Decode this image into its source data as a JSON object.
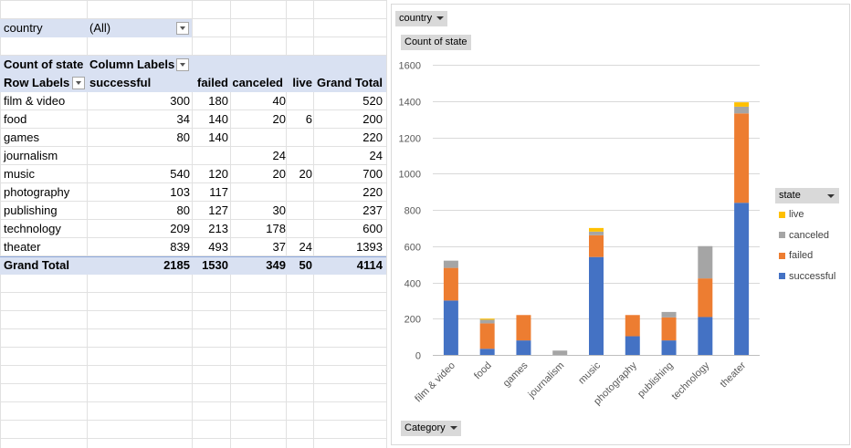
{
  "filter": {
    "field": "country",
    "value": "(All)"
  },
  "pivot": {
    "values_label": "Count of state",
    "column_labels_label": "Column Labels",
    "row_labels_label": "Row Labels",
    "columns": [
      "successful",
      "failed",
      "canceled",
      "live",
      "Grand Total"
    ],
    "rows": [
      {
        "label": "film & video",
        "values": [
          "300",
          "180",
          "40",
          "",
          "520"
        ]
      },
      {
        "label": "food",
        "values": [
          "34",
          "140",
          "20",
          "6",
          "200"
        ]
      },
      {
        "label": "games",
        "values": [
          "80",
          "140",
          "",
          "",
          "220"
        ]
      },
      {
        "label": "journalism",
        "values": [
          "",
          "",
          "24",
          "",
          "24"
        ]
      },
      {
        "label": "music",
        "values": [
          "540",
          "120",
          "20",
          "20",
          "700"
        ]
      },
      {
        "label": "photography",
        "values": [
          "103",
          "117",
          "",
          "",
          "220"
        ]
      },
      {
        "label": "publishing",
        "values": [
          "80",
          "127",
          "30",
          "",
          "237"
        ]
      },
      {
        "label": "technology",
        "values": [
          "209",
          "213",
          "178",
          "",
          "600"
        ]
      },
      {
        "label": "theater",
        "values": [
          "839",
          "493",
          "37",
          "24",
          "1393"
        ]
      }
    ],
    "total": {
      "label": "Grand Total",
      "values": [
        "2185",
        "1530",
        "349",
        "50",
        "4114"
      ]
    }
  },
  "chart": {
    "filter_chip": "country",
    "values_chip": "Count of state",
    "axis_chip": "Category",
    "legend_title": "state"
  },
  "colors": {
    "successful": "#4472c4",
    "failed": "#ed7d31",
    "canceled": "#a5a5a5",
    "live": "#ffc000",
    "header_band": "#d9e1f2",
    "gridline": "#d9d9d9"
  },
  "chart_data": {
    "type": "bar",
    "stacked": true,
    "categories": [
      "film & video",
      "food",
      "games",
      "journalism",
      "music",
      "photography",
      "publishing",
      "technology",
      "theater"
    ],
    "series": [
      {
        "name": "successful",
        "values": [
          300,
          34,
          80,
          0,
          540,
          103,
          80,
          209,
          839
        ]
      },
      {
        "name": "failed",
        "values": [
          180,
          140,
          140,
          0,
          120,
          117,
          127,
          213,
          493
        ]
      },
      {
        "name": "canceled",
        "values": [
          40,
          20,
          0,
          24,
          20,
          0,
          30,
          178,
          37
        ]
      },
      {
        "name": "live",
        "values": [
          0,
          6,
          0,
          0,
          20,
          0,
          0,
          0,
          24
        ]
      }
    ],
    "legend_order": [
      "live",
      "canceled",
      "failed",
      "successful"
    ],
    "ylim": [
      0,
      1600
    ],
    "yticks": [
      "0",
      "200",
      "400",
      "600",
      "800",
      "1000",
      "1200",
      "1400",
      "1600"
    ],
    "grid": true,
    "legend": "right"
  }
}
